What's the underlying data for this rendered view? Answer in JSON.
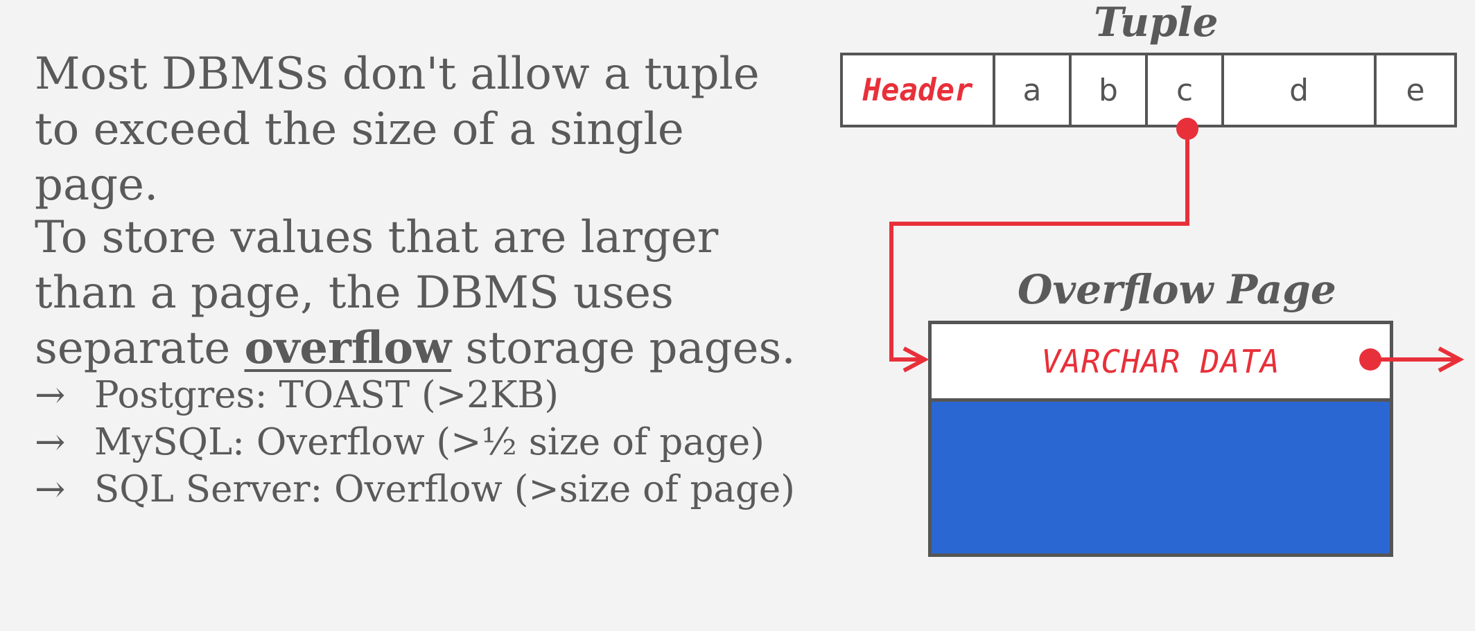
{
  "text": {
    "para1": "Most DBMSs don't allow a tuple to exceed the size of a single page.",
    "para2_before": "To store values that are larger than a page, the DBMS uses separate ",
    "para2_emphasis": "overflow",
    "para2_after": " storage pages.",
    "bullets": [
      {
        "arrow": "→",
        "text": "Postgres: TOAST (>2KB)"
      },
      {
        "arrow": "→",
        "text": "MySQL: Overflow (>½ size of page)"
      },
      {
        "arrow": "→",
        "text": "SQL Server: Overflow (>size of page)"
      }
    ]
  },
  "diagram": {
    "tuple_title": "Tuple",
    "tuple_cells": [
      "Header",
      "a",
      "b",
      "c",
      "d",
      "e"
    ],
    "overflow_title": "Overflow Page",
    "overflow_row_label": "VARCHAR DATA"
  },
  "colors": {
    "accent_red": "#e8303a",
    "page_blue": "#2a67d2",
    "border_gray": "#555555",
    "background": "#f3f3f3"
  }
}
